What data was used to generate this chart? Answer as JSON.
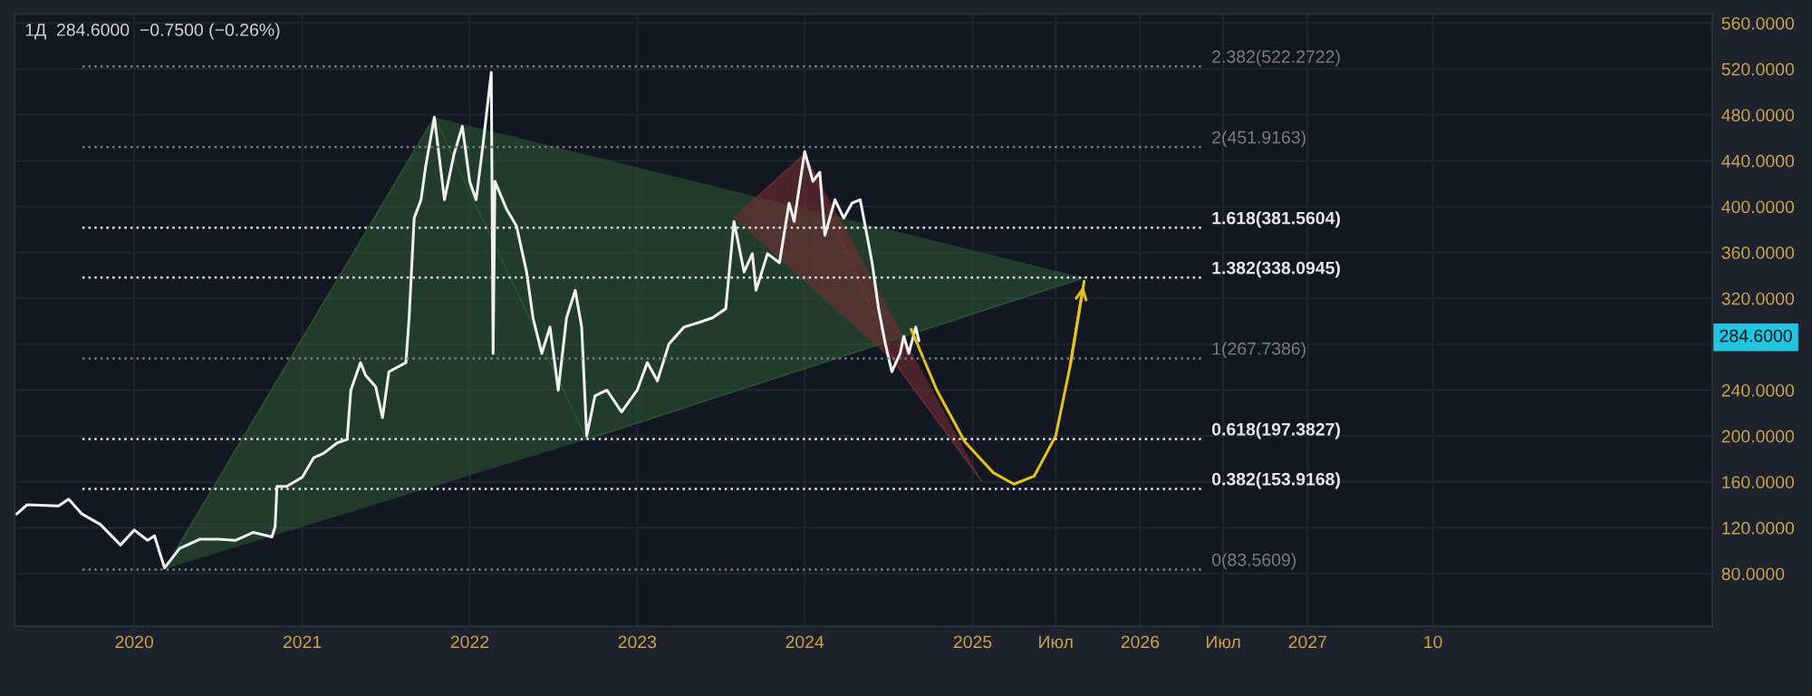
{
  "chart_data": {
    "type": "line",
    "title": "1Д  284.6000  −0.7500 (−0.26%)",
    "xlim": [
      "2019-04-15",
      "2029-06-01"
    ],
    "xticks": [
      {
        "value": "2020-01-01",
        "label": "2020"
      },
      {
        "value": "2021-01-01",
        "label": "2021"
      },
      {
        "value": "2022-01-01",
        "label": "2022"
      },
      {
        "value": "2023-01-01",
        "label": "2023"
      },
      {
        "value": "2024-01-01",
        "label": "2024"
      },
      {
        "value": "2025-01-01",
        "label": "2025"
      },
      {
        "value": "2025-07-01",
        "label": "Июл"
      },
      {
        "value": "2026-01-01",
        "label": "2026"
      },
      {
        "value": "2026-07-01",
        "label": "Июл"
      },
      {
        "value": "2027-01-01",
        "label": "2027"
      },
      {
        "value": "2027-10-01",
        "label": "10"
      }
    ],
    "ylim": [
      34,
      568
    ],
    "yticks": [
      {
        "value": 80,
        "label": "80.0000"
      },
      {
        "value": 120,
        "label": "120.0000"
      },
      {
        "value": 160,
        "label": "160.0000"
      },
      {
        "value": 200,
        "label": "200.0000"
      },
      {
        "value": 240,
        "label": "240.0000"
      },
      {
        "value": 280,
        "label": null
      },
      {
        "value": 320,
        "label": "320.0000"
      },
      {
        "value": 360,
        "label": "360.0000"
      },
      {
        "value": 400,
        "label": "400.0000"
      },
      {
        "value": 440,
        "label": "440.0000"
      },
      {
        "value": 480,
        "label": "480.0000"
      },
      {
        "value": 520,
        "label": "520.0000"
      },
      {
        "value": 560,
        "label": "560.0000"
      }
    ],
    "grid": true,
    "ref_lines": [
      {
        "axis": "y",
        "value": 522.2722,
        "label": "2.382(522.2722)",
        "color": "#787b86",
        "line_style": "dotted"
      },
      {
        "axis": "y",
        "value": 451.9163,
        "label": "2(451.9163)",
        "color": "#787b86",
        "line_style": "dotted"
      },
      {
        "axis": "y",
        "value": 381.5604,
        "label": "1.618(381.5604)",
        "color": "#e6e8ee",
        "line_style": "dotted"
      },
      {
        "axis": "y",
        "value": 338.0945,
        "label": "1.382(338.0945)",
        "color": "#e6e8ee",
        "line_style": "dotted"
      },
      {
        "axis": "y",
        "value": 267.7386,
        "label": "1(267.7386)",
        "color": "#787b86",
        "line_style": "dotted"
      },
      {
        "axis": "y",
        "value": 197.3827,
        "label": "0.618(197.3827)",
        "color": "#e6e8ee",
        "line_style": "dotted"
      },
      {
        "axis": "y",
        "value": 153.9168,
        "label": "0.382(153.9168)",
        "color": "#e6e8ee",
        "line_style": "dotted"
      },
      {
        "axis": "y",
        "value": 83.5609,
        "label": "0(83.5609)",
        "color": "#787b86",
        "line_style": "dotted"
      }
    ],
    "annotations": [
      "284.6000"
    ],
    "series": [
      {
        "type": "area",
        "color": "#2e5a34",
        "x": [
          "2020-03-07",
          "2021-10-16",
          "2022-09-13",
          "2025-09-01"
        ],
        "values": [
          84,
          478,
          197,
          338
        ]
      },
      {
        "type": "area",
        "color": "#7a2d33",
        "x": [
          "2023-07-31",
          "2024-01-01",
          "2024-07-15",
          "2025-01-20"
        ],
        "values": [
          390,
          446,
          264,
          161
        ]
      },
      {
        "color": "#f0f0f0",
        "x": [
          "2019-04-20",
          "2019-05-12",
          "2019-07-20",
          "2019-08-11",
          "2019-09-09",
          "2019-10-19",
          "2019-12-02",
          "2020-01-01",
          "2020-01-30",
          "2020-02-14",
          "2020-03-07",
          "2020-04-09",
          "2020-05-23",
          "2020-07-02",
          "2020-08-08",
          "2020-09-17",
          "2020-10-27",
          "2020-11-03",
          "2020-11-07",
          "2020-11-28",
          "2021-01-01",
          "2021-01-26",
          "2021-02-17",
          "2021-03-18",
          "2021-04-09",
          "2021-04-17",
          "2021-05-08",
          "2021-05-19",
          "2021-06-10",
          "2021-06-25",
          "2021-07-09",
          "2021-08-15",
          "2021-08-22",
          "2021-09-02",
          "2021-09-17",
          "2021-09-27",
          "2021-10-16",
          "2021-11-07",
          "2021-11-28",
          "2021-12-16",
          "2022-01-01",
          "2022-01-15",
          "2022-01-30",
          "2022-02-17",
          "2022-02-21",
          "2022-02-25",
          "2022-03-22",
          "2022-04-13",
          "2022-05-05",
          "2022-05-19",
          "2022-06-07",
          "2022-06-25",
          "2022-07-13",
          "2022-07-31",
          "2022-08-19",
          "2022-09-02",
          "2022-09-13",
          "2022-10-01",
          "2022-10-27",
          "2022-11-28",
          "2023-01-01",
          "2023-01-23",
          "2023-02-14",
          "2023-03-11",
          "2023-04-13",
          "2023-05-16",
          "2023-06-14",
          "2023-07-13",
          "2023-07-31",
          "2023-08-22",
          "2023-09-09",
          "2023-09-17",
          "2023-10-12",
          "2023-11-07",
          "2023-11-28",
          "2023-12-09",
          "2024-01-01",
          "2024-01-19",
          "2024-02-03",
          "2024-02-14",
          "2024-03-07",
          "2024-03-26",
          "2024-04-13",
          "2024-05-01",
          "2024-05-12",
          "2024-05-27",
          "2024-06-10",
          "2024-06-25",
          "2024-07-09",
          "2024-07-27",
          "2024-08-04",
          "2024-08-15",
          "2024-08-30",
          "2024-09-06"
        ],
        "values": [
          132,
          140,
          139,
          145,
          132,
          123,
          105,
          118,
          109,
          113,
          85,
          102,
          110,
          110,
          109,
          116,
          112,
          121,
          156,
          156,
          164,
          181,
          185,
          194,
          197,
          240,
          264,
          253,
          243,
          216,
          256,
          264,
          303,
          390,
          406,
          435,
          478,
          406,
          446,
          470,
          422,
          406,
          454,
          517,
          272,
          422,
          398,
          383,
          343,
          303,
          272,
          295,
          240,
          303,
          327,
          295,
          200,
          235,
          240,
          221,
          240,
          264,
          248,
          280,
          295,
          299,
          303,
          311,
          387,
          343,
          359,
          327,
          359,
          351,
          403,
          387,
          448,
          422,
          430,
          375,
          406,
          390,
          403,
          406,
          383,
          351,
          311,
          280,
          256,
          272,
          287,
          272,
          295,
          283
        ]
      },
      {
        "type": "line",
        "color": "#e3c21a",
        "x": [
          "2024-08-20",
          "2024-10-15",
          "2024-12-15",
          "2025-02-15",
          "2025-04-01",
          "2025-05-15",
          "2025-07-01",
          "2025-08-01",
          "2025-09-01"
        ],
        "values": [
          293,
          240,
          195,
          168,
          158,
          165,
          200,
          260,
          335
        ]
      }
    ]
  }
}
